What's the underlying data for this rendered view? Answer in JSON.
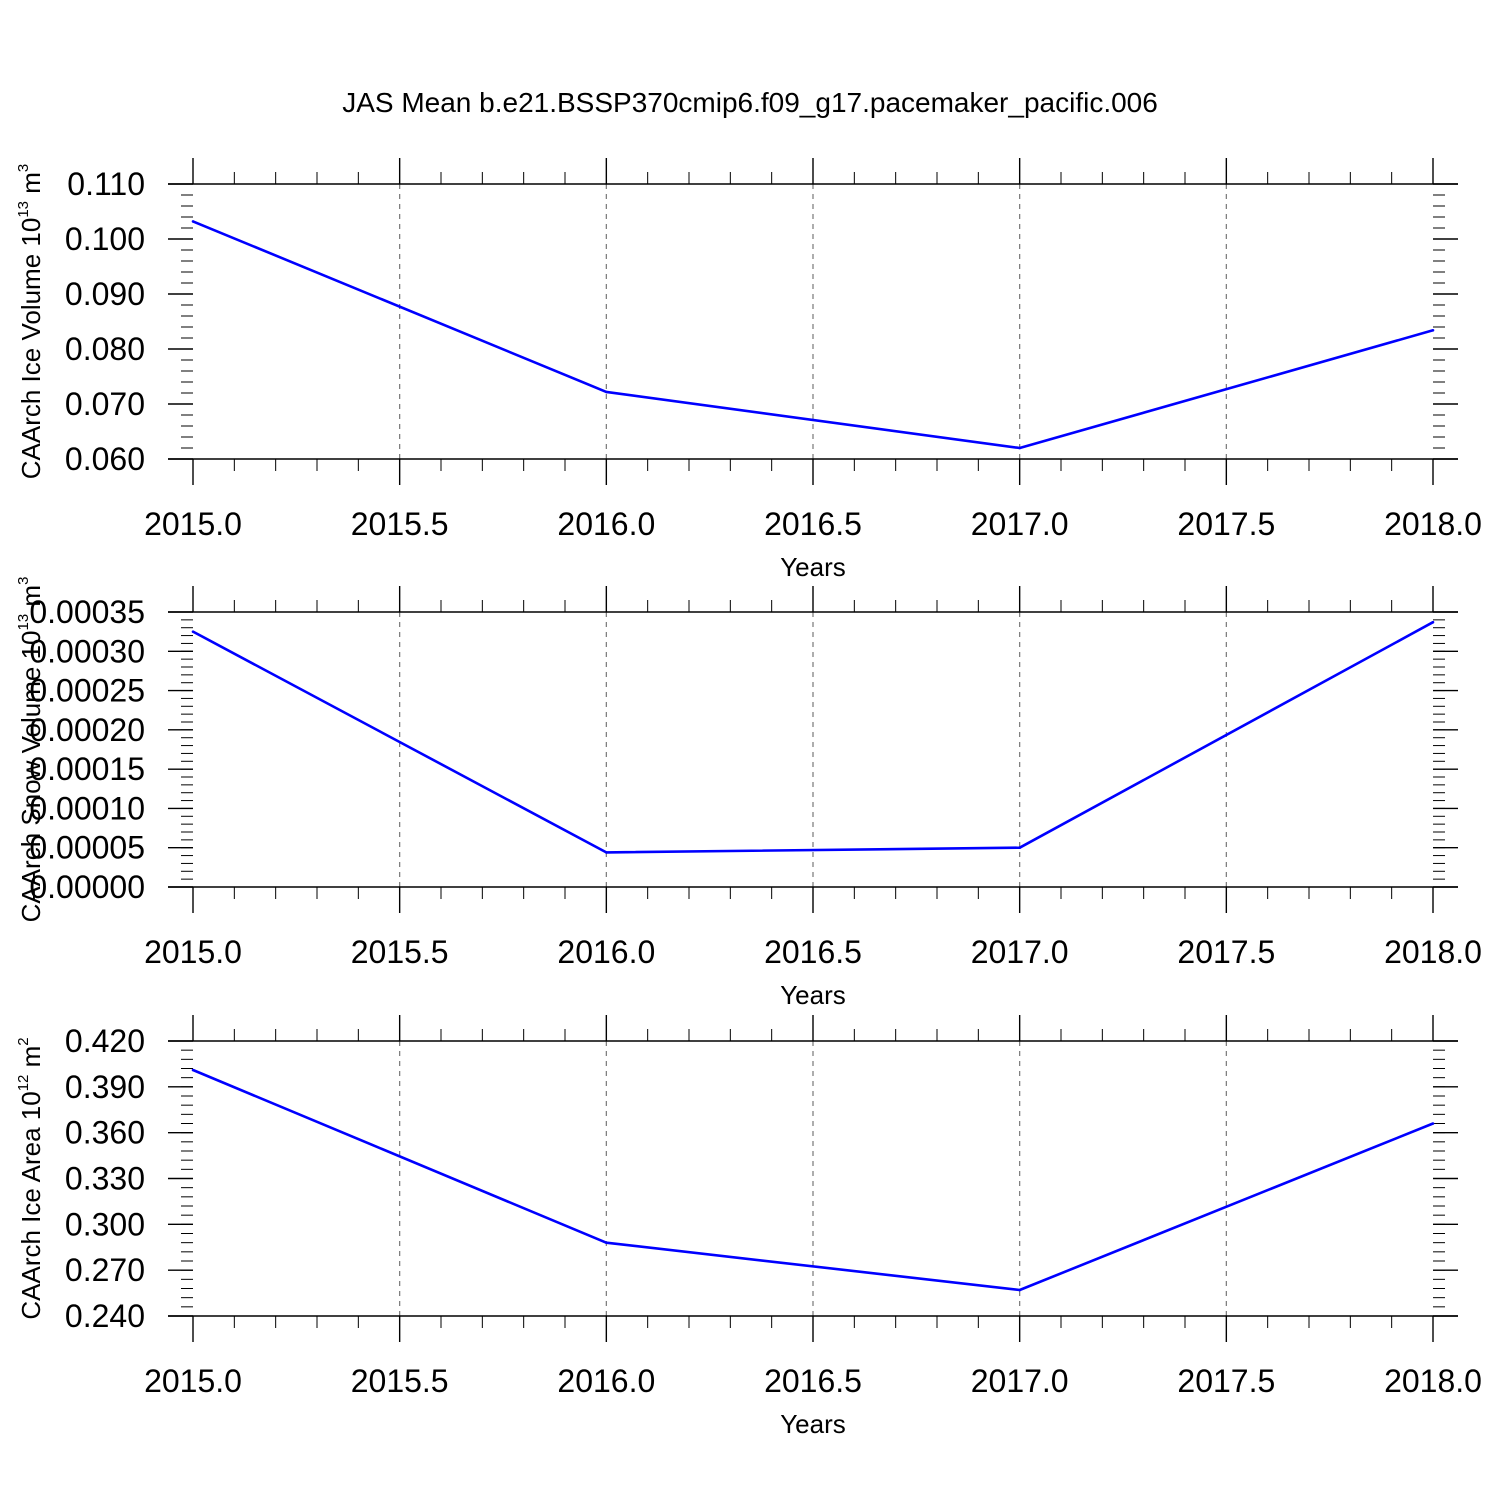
{
  "title": "JAS Mean b.e21.BSSP370cmip6.f09_g17.pacemaker_pacific.006",
  "colors": {
    "line": "#0000ff",
    "axis": "#000000",
    "grid": "#777777"
  },
  "chart_data": [
    {
      "type": "line",
      "xlabel": "Years",
      "ylabel": {
        "text": "CAArch Ice Volume 10",
        "exp1": "13",
        "mid": " m",
        "exp2": "3"
      },
      "xlim": [
        2015.0,
        2018.0
      ],
      "ylim": [
        0.06,
        0.11
      ],
      "xticks": [
        "2015.0",
        "2015.5",
        "2016.0",
        "2016.5",
        "2017.0",
        "2017.5",
        "2018.0"
      ],
      "yticks": [
        "0.060",
        "0.070",
        "0.080",
        "0.090",
        "0.100",
        "0.110"
      ],
      "x": [
        2015,
        2016,
        2017,
        2018
      ],
      "values": [
        0.1032,
        0.0722,
        0.062,
        0.0834
      ],
      "grid": "vertical-dashed"
    },
    {
      "type": "line",
      "xlabel": "Years",
      "ylabel": {
        "text": "CAArch Snow Volume 10",
        "exp1": "13",
        "mid": " m",
        "exp2": "3"
      },
      "xlim": [
        2015.0,
        2018.0
      ],
      "ylim": [
        0.0,
        0.00035
      ],
      "xticks": [
        "2015.0",
        "2015.5",
        "2016.0",
        "2016.5",
        "2017.0",
        "2017.5",
        "2018.0"
      ],
      "yticks": [
        "0.00000",
        "0.00005",
        "0.00010",
        "0.00015",
        "0.00020",
        "0.00025",
        "0.00030",
        "0.00035"
      ],
      "x": [
        2015,
        2016,
        2017,
        2018
      ],
      "values": [
        0.000325,
        4.4e-05,
        5e-05,
        0.000337
      ],
      "grid": "vertical-dashed"
    },
    {
      "type": "line",
      "xlabel": "Years",
      "ylabel": {
        "text": "CAArch Ice Area 10",
        "exp1": "12",
        "mid": " m",
        "exp2": "2"
      },
      "xlim": [
        2015.0,
        2018.0
      ],
      "ylim": [
        0.24,
        0.42
      ],
      "xticks": [
        "2015.0",
        "2015.5",
        "2016.0",
        "2016.5",
        "2017.0",
        "2017.5",
        "2018.0"
      ],
      "yticks": [
        "0.240",
        "0.270",
        "0.300",
        "0.330",
        "0.360",
        "0.390",
        "0.420"
      ],
      "x": [
        2015,
        2016,
        2017,
        2018
      ],
      "values": [
        0.401,
        0.288,
        0.257,
        0.366
      ],
      "grid": "vertical-dashed"
    }
  ]
}
